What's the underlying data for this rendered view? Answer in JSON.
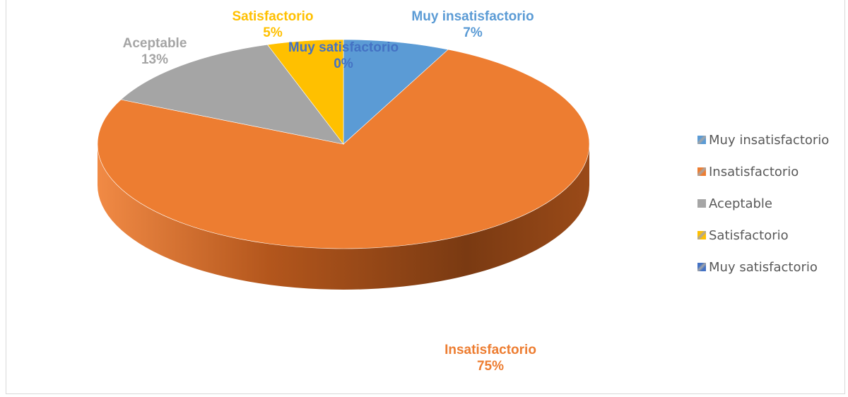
{
  "chart_data": {
    "type": "pie",
    "title": "",
    "style": "3d",
    "categories": [
      "Muy insatisfactorio",
      "Insatisfactorio",
      "Aceptable",
      "Satisfactorio",
      "Muy satisfactorio"
    ],
    "values": [
      7,
      75,
      13,
      5,
      0
    ],
    "value_labels": [
      "7%",
      "75%",
      "13%",
      "5%",
      "0%"
    ],
    "colors": [
      "#5b9bd5",
      "#ed7d31",
      "#a5a5a5",
      "#ffc000",
      "#4472c4"
    ],
    "legend": {
      "position": "right",
      "items": [
        "Muy insatisfactorio",
        "Insatisfactorio",
        "Aceptable",
        "Satisfactorio",
        "Muy satisfactorio"
      ]
    }
  }
}
